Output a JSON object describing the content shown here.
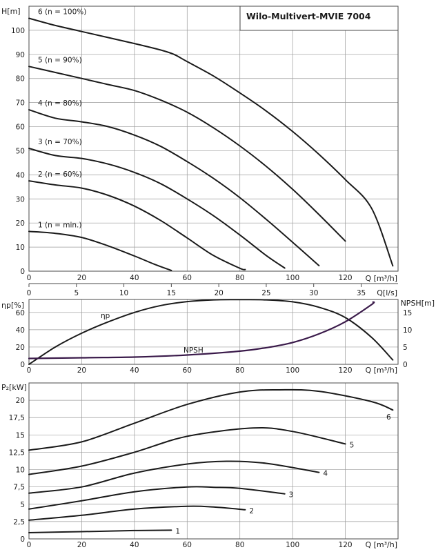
{
  "chart_data": [
    {
      "id": "head",
      "type": "line",
      "title": "Wilo-Multivert-MVIE 7004",
      "xlabel": "Q [m³/h]",
      "ylabel": "H[m]",
      "xlim": [
        0,
        140
      ],
      "ylim": [
        0,
        110
      ],
      "x_ticks": [
        0,
        20,
        40,
        60,
        80,
        100,
        120
      ],
      "y_ticks": [
        0,
        10,
        20,
        30,
        40,
        50,
        60,
        70,
        80,
        90,
        100
      ],
      "secondary_xlabel": "Q[l/s]",
      "secondary_x_ticks": [
        0,
        5,
        10,
        15,
        20,
        25,
        30,
        35
      ],
      "series": [
        {
          "name": "1 (n = min.)",
          "x": [
            0,
            10,
            20,
            30,
            40,
            48,
            54
          ],
          "y": [
            16.5,
            15.7,
            14,
            10.5,
            6.3,
            2.7,
            0.3
          ]
        },
        {
          "name": "2 (n = 60%)",
          "x": [
            0,
            10,
            20,
            30,
            40,
            50,
            60,
            70,
            80,
            82
          ],
          "y": [
            37.5,
            35.8,
            34.5,
            31.5,
            27,
            21,
            13.8,
            6.5,
            1.2,
            0.7
          ]
        },
        {
          "name": "3 (n = 70%)",
          "x": [
            0,
            10,
            20,
            30,
            40,
            50,
            60,
            70,
            80,
            90,
            97
          ],
          "y": [
            51,
            48,
            46.8,
            44.5,
            41,
            36.3,
            30,
            23,
            15,
            6.5,
            1.3
          ]
        },
        {
          "name": "4 (n = 80%)",
          "x": [
            0,
            10,
            20,
            30,
            40,
            50,
            60,
            70,
            80,
            90,
            100,
            110
          ],
          "y": [
            67,
            63.5,
            62,
            60,
            56.5,
            51.8,
            45.5,
            38.5,
            30.5,
            21.5,
            12,
            2.3
          ]
        },
        {
          "name": "5 (n = 90%)",
          "x": [
            0,
            10,
            20,
            30,
            40,
            50,
            60,
            70,
            80,
            90,
            100,
            110,
            120
          ],
          "y": [
            85,
            82.5,
            80,
            77.5,
            75,
            71,
            66,
            59.5,
            52,
            43.5,
            34,
            23.5,
            12.5
          ]
        },
        {
          "name": "6 (n = 100%)",
          "x": [
            0,
            10,
            20,
            30,
            40,
            50,
            55,
            60,
            70,
            80,
            90,
            100,
            110,
            120,
            130,
            138
          ],
          "y": [
            105,
            102,
            99.5,
            97,
            94.5,
            91.8,
            90,
            87,
            81,
            74,
            66.5,
            58,
            48.5,
            38,
            26,
            2.2
          ]
        }
      ]
    },
    {
      "id": "efficiency-npsh",
      "type": "line",
      "xlabel": "Q [m³/h]",
      "ylabel": "ηp[%]",
      "y2label": "NPSH[m]",
      "xlim": [
        0,
        140
      ],
      "ylim": [
        0,
        75
      ],
      "y2lim": [
        0,
        18.75
      ],
      "x_ticks": [
        0,
        20,
        40,
        60,
        80,
        100,
        120
      ],
      "y_ticks": [
        0,
        20,
        40,
        60
      ],
      "y2_ticks": [
        0,
        5,
        10,
        15
      ],
      "series": [
        {
          "name": "ηp",
          "axis": "left",
          "x": [
            0,
            10,
            20,
            30,
            40,
            50,
            60,
            70,
            80,
            90,
            100,
            110,
            120,
            130,
            138
          ],
          "y": [
            0,
            20,
            36,
            49,
            60,
            68,
            72.5,
            74.5,
            74.8,
            74.5,
            72.3,
            66,
            54,
            31,
            5
          ]
        },
        {
          "name": "NPSH",
          "axis": "right",
          "x": [
            0,
            20,
            40,
            60,
            80,
            90,
            100,
            110,
            120,
            130,
            130.5
          ],
          "y": [
            1.7,
            1.9,
            2.1,
            2.7,
            3.8,
            4.8,
            6.3,
            8.8,
            12.3,
            17.3,
            18
          ]
        }
      ]
    },
    {
      "id": "power",
      "type": "line",
      "xlabel": "Q [m³/h]",
      "ylabel": "P₂[kW]",
      "xlim": [
        0,
        140
      ],
      "ylim": [
        0,
        22.5
      ],
      "x_ticks": [
        0,
        20,
        40,
        60,
        80,
        100,
        120
      ],
      "y_ticks": [
        "0",
        "2,5",
        "5",
        "7,5",
        "10",
        "12,5",
        "15",
        "17,5",
        "20"
      ],
      "series": [
        {
          "name": "1",
          "x": [
            0,
            20,
            40,
            54
          ],
          "y": [
            0.9,
            1.05,
            1.2,
            1.25
          ]
        },
        {
          "name": "2",
          "x": [
            0,
            20,
            40,
            60,
            70,
            82
          ],
          "y": [
            2.7,
            3.4,
            4.3,
            4.7,
            4.6,
            4.2
          ]
        },
        {
          "name": "3",
          "x": [
            0,
            20,
            40,
            60,
            70,
            80,
            97
          ],
          "y": [
            4.3,
            5.5,
            6.8,
            7.5,
            7.45,
            7.3,
            6.5
          ]
        },
        {
          "name": "4",
          "x": [
            0,
            20,
            40,
            60,
            75,
            90,
            110
          ],
          "y": [
            6.6,
            7.5,
            9.5,
            10.8,
            11.2,
            10.9,
            9.6
          ]
        },
        {
          "name": "5",
          "x": [
            0,
            20,
            40,
            60,
            85,
            100,
            120
          ],
          "y": [
            9.3,
            10.5,
            12.5,
            14.8,
            16,
            15.5,
            13.7
          ]
        },
        {
          "name": "6",
          "x": [
            0,
            20,
            40,
            60,
            80,
            95,
            110,
            130,
            138
          ],
          "y": [
            12.8,
            14,
            16.7,
            19.4,
            21.2,
            21.5,
            21.3,
            19.8,
            18.6
          ]
        }
      ]
    }
  ]
}
